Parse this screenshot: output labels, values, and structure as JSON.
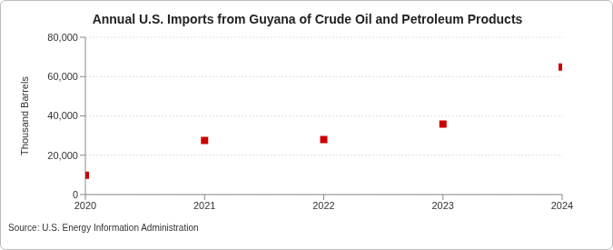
{
  "chart_data": {
    "type": "scatter",
    "title": "Annual U.S. Imports from Guyana of Crude Oil and Petroleum Products",
    "y_label": "Thousand Barrels",
    "source": "Source: U.S. Energy Information Administration",
    "x": [
      2020,
      2021,
      2022,
      2023,
      2024
    ],
    "values": [
      9800,
      27500,
      28000,
      35800,
      64800
    ],
    "color": "#cc0000",
    "marker": "square",
    "xlim": [
      2020,
      2024
    ],
    "xticks": [
      2020,
      2021,
      2022,
      2023,
      2024
    ],
    "ylim": [
      0,
      80000
    ],
    "yticks": [
      0,
      {
        "value": 20000,
        "label": "20,000"
      },
      {
        "value": 40000,
        "label": "40,000"
      },
      {
        "value": 60000,
        "label": "60,000"
      },
      {
        "value": 80000,
        "label": "80,000"
      }
    ],
    "grid": true
  }
}
